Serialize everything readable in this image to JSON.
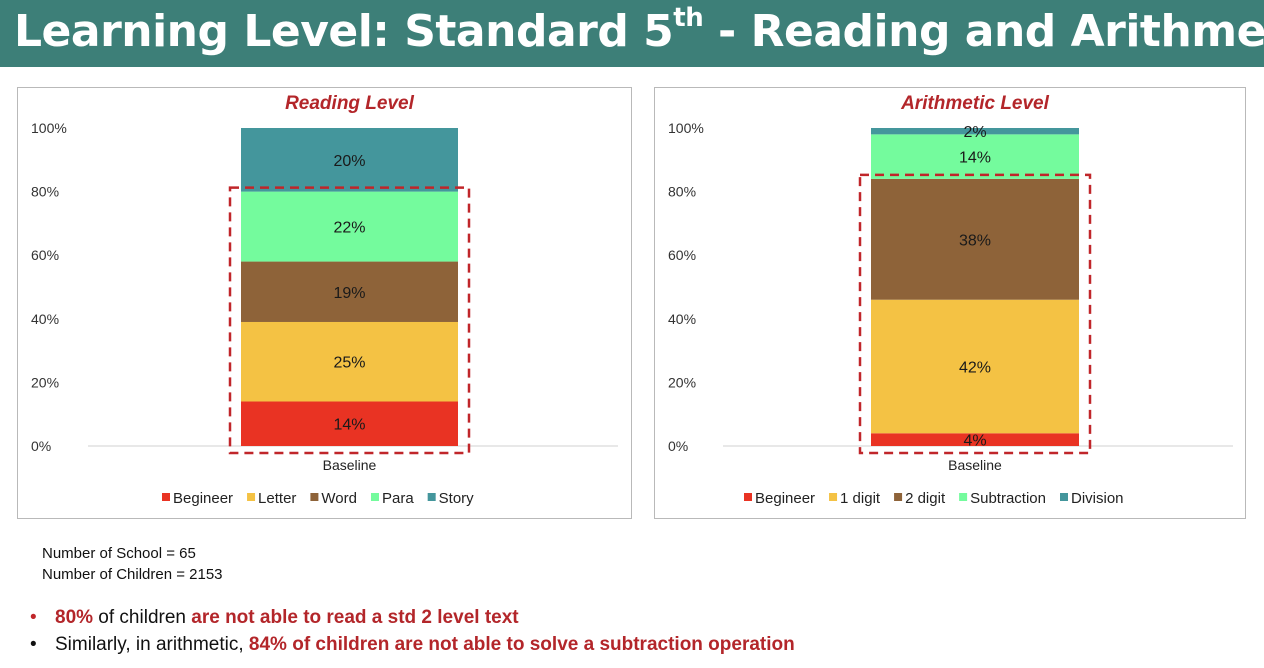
{
  "header": {
    "title_prefix": "Learning Level: Standard 5",
    "title_sup": "th",
    "title_suffix": " - Reading and Arithmetic",
    "background": "#3d7f78"
  },
  "chart_data": [
    {
      "type": "bar",
      "stacked": true,
      "title": "Reading Level",
      "categories": [
        "Baseline"
      ],
      "ylim": [
        0,
        100
      ],
      "yticks": [
        "0%",
        "20%",
        "40%",
        "60%",
        "80%",
        "100%"
      ],
      "legend_position": "bottom",
      "highlight_box": "dashed red outline around Begineer to Para segments",
      "series": [
        {
          "name": "Begineer",
          "values": [
            14
          ],
          "label": "14%",
          "color": "#e93323"
        },
        {
          "name": "Letter",
          "values": [
            25
          ],
          "label": "25%",
          "color": "#f4c244"
        },
        {
          "name": "Word",
          "values": [
            19
          ],
          "label": "19%",
          "color": "#8e6339"
        },
        {
          "name": "Para",
          "values": [
            22
          ],
          "label": "22%",
          "color": "#74fb9d"
        },
        {
          "name": "Story",
          "values": [
            20
          ],
          "label": "20%",
          "color": "#44969c"
        }
      ]
    },
    {
      "type": "bar",
      "stacked": true,
      "title": "Arithmetic Level",
      "categories": [
        "Baseline"
      ],
      "ylim": [
        0,
        100
      ],
      "yticks": [
        "0%",
        "20%",
        "40%",
        "60%",
        "80%",
        "100%"
      ],
      "legend_position": "bottom",
      "highlight_box": "dashed red outline around Begineer to 2 digit segments",
      "series": [
        {
          "name": "Begineer",
          "values": [
            4
          ],
          "label": "4%",
          "color": "#e93323"
        },
        {
          "name": "1 digit",
          "values": [
            42
          ],
          "label": "42%",
          "color": "#f4c244"
        },
        {
          "name": "2 digit",
          "values": [
            38
          ],
          "label": "38%",
          "color": "#8e6339"
        },
        {
          "name": "Subtraction",
          "values": [
            14
          ],
          "label": "14%",
          "color": "#74fb9d"
        },
        {
          "name": "Division",
          "values": [
            2
          ],
          "label": "2%",
          "color": "#44969c"
        }
      ]
    }
  ],
  "stats": {
    "schools": "Number of School = 65",
    "children": "Number of Children = 2153"
  },
  "notes": {
    "line1_red": "80%",
    "line1_text": " of children ",
    "line1_red2": "are not able to read a std 2 level text",
    "line2_text": "Similarly, in arithmetic, ",
    "line2_red": "84% of children are not able to solve a subtraction operation",
    "bullet": "•"
  },
  "colors": {
    "accent_red": "#b3262a",
    "axis_text": "#333333"
  }
}
